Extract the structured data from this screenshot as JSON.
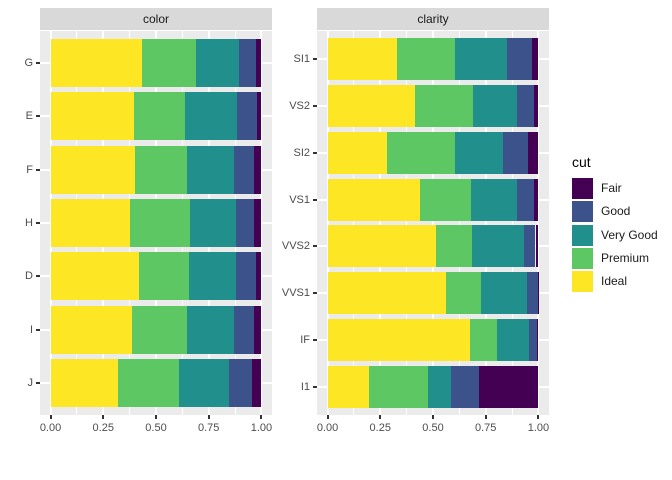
{
  "figure": {
    "background": "#FFFFFF",
    "panel_background": "#EBEBEB",
    "strip_background": "#D9D9D9",
    "gridline_color": "#FFFFFF",
    "axis_text_color": "#4D4D4D",
    "strip_text_color": "#1A1A1A",
    "tick_color": "#333333"
  },
  "legend": {
    "title": "cut",
    "position": "right",
    "items": [
      {
        "label": "Fair",
        "color": "#440154"
      },
      {
        "label": "Good",
        "color": "#3B528B"
      },
      {
        "label": "Very Good",
        "color": "#21908C"
      },
      {
        "label": "Premium",
        "color": "#5DC863"
      },
      {
        "label": "Ideal",
        "color": "#FDE725"
      }
    ]
  },
  "x_axis": {
    "tick_labels": [
      "0.00",
      "0.25",
      "0.50",
      "0.75",
      "1.00"
    ],
    "tick_values": [
      0,
      0.25,
      0.5,
      0.75,
      1.0
    ],
    "minor_tick_values": [
      0.125,
      0.375,
      0.625,
      0.875
    ],
    "range": [
      0,
      1
    ]
  },
  "chart_data": [
    {
      "type": "bar",
      "orientation": "horizontal",
      "stacked": true,
      "normalized": true,
      "facet": "color",
      "grid": true,
      "xlim": [
        0,
        1
      ],
      "categories": [
        "G",
        "E",
        "F",
        "H",
        "D",
        "I",
        "J"
      ],
      "series": [
        {
          "name": "Ideal",
          "values": [
            0.432,
            0.398,
            0.401,
            0.375,
            0.418,
            0.386,
            0.319
          ]
        },
        {
          "name": "Premium",
          "values": [
            0.259,
            0.239,
            0.244,
            0.284,
            0.237,
            0.263,
            0.288
          ]
        },
        {
          "name": "Very Good",
          "values": [
            0.204,
            0.245,
            0.227,
            0.22,
            0.223,
            0.222,
            0.241
          ]
        },
        {
          "name": "Good",
          "values": [
            0.077,
            0.095,
            0.095,
            0.085,
            0.098,
            0.096,
            0.109
          ]
        },
        {
          "name": "Fair",
          "values": [
            0.028,
            0.023,
            0.033,
            0.036,
            0.024,
            0.033,
            0.043
          ]
        }
      ]
    },
    {
      "type": "bar",
      "orientation": "horizontal",
      "stacked": true,
      "normalized": true,
      "facet": "clarity",
      "grid": true,
      "xlim": [
        0,
        1
      ],
      "categories": [
        "SI1",
        "VS2",
        "SI2",
        "VS1",
        "VVS2",
        "VVS1",
        "IF",
        "I1"
      ],
      "series": [
        {
          "name": "Ideal",
          "values": [
            0.328,
            0.414,
            0.283,
            0.439,
            0.514,
            0.56,
            0.677,
            0.197
          ]
        },
        {
          "name": "Premium",
          "values": [
            0.274,
            0.274,
            0.321,
            0.243,
            0.172,
            0.169,
            0.128,
            0.277
          ]
        },
        {
          "name": "Very Good",
          "values": [
            0.248,
            0.211,
            0.228,
            0.217,
            0.244,
            0.216,
            0.15,
            0.113
          ]
        },
        {
          "name": "Good",
          "values": [
            0.119,
            0.08,
            0.118,
            0.08,
            0.056,
            0.051,
            0.04,
            0.13
          ]
        },
        {
          "name": "Fair",
          "values": [
            0.031,
            0.021,
            0.05,
            0.021,
            0.014,
            0.004,
            0.005,
            0.283
          ]
        }
      ]
    }
  ]
}
